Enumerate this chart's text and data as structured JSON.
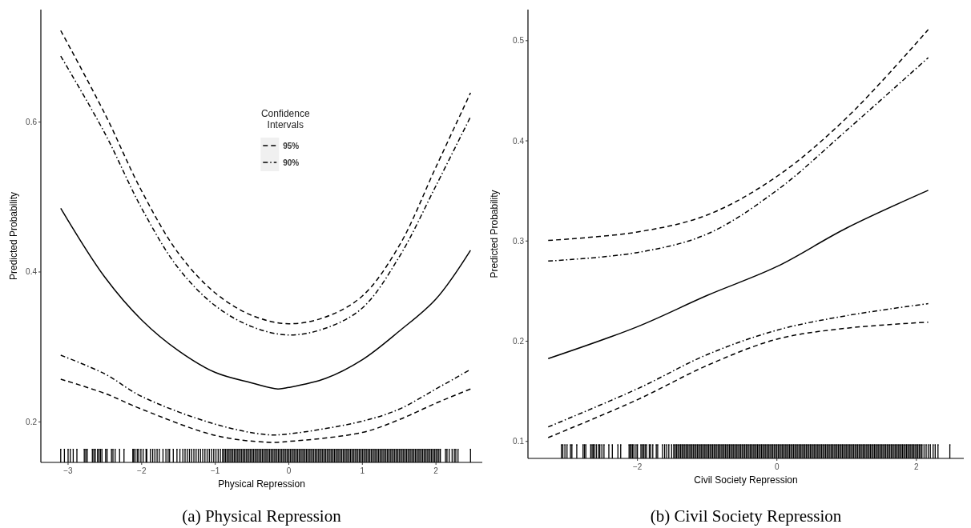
{
  "chart_data": [
    {
      "type": "line",
      "title": "(a) Physical Repression",
      "xlabel": "Physical Repression",
      "ylabel": "Predicted Probability",
      "legend_title": "Confidence\nIntervals",
      "legend": "top",
      "xlim": [
        -3.37,
        2.63
      ],
      "xticks": [
        {
          "value": -3,
          "label": "−3"
        },
        {
          "value": -2,
          "label": "−2"
        },
        {
          "value": -1,
          "label": "−1"
        },
        0,
        1,
        2
      ],
      "ylim": [
        0.146,
        0.75
      ],
      "yticks": [
        0.2,
        0.4,
        0.6
      ],
      "series": [
        {
          "color": "#000000",
          "line_style": "solid",
          "x": [
            -3.1,
            -2.5,
            -2,
            -1.5,
            -1,
            -0.5,
            -0.15,
            0,
            0.5,
            1,
            1.5,
            2,
            2.47
          ],
          "values": [
            0.485,
            0.393,
            0.336,
            0.295,
            0.266,
            0.252,
            0.244,
            0.246,
            0.258,
            0.283,
            0.321,
            0.364,
            0.429
          ]
        },
        {
          "name": "95%",
          "color": "#000000",
          "line_style": "dashed",
          "x": [
            -3.1,
            -2.5,
            -2,
            -1.5,
            -1,
            -0.5,
            0,
            0.5,
            1,
            1.5,
            2,
            2.47
          ],
          "values": [
            0.722,
            0.611,
            0.508,
            0.425,
            0.372,
            0.342,
            0.331,
            0.34,
            0.368,
            0.435,
            0.54,
            0.639
          ]
        },
        {
          "name": "90%",
          "color": "#000000",
          "line_style": "dashdot",
          "x": [
            -3.1,
            -2.5,
            -2,
            -1.5,
            -1,
            -0.5,
            0,
            0.5,
            1,
            1.5,
            2,
            2.47
          ],
          "values": [
            0.688,
            0.585,
            0.485,
            0.405,
            0.355,
            0.327,
            0.316,
            0.325,
            0.352,
            0.42,
            0.515,
            0.607
          ]
        },
        {
          "color": "#000000",
          "line_style": "dashed",
          "x": [
            -3.1,
            -2.5,
            -2,
            -1,
            -0.3,
            0,
            1,
            1.5,
            2,
            2.47
          ],
          "values": [
            0.257,
            0.238,
            0.217,
            0.182,
            0.173,
            0.174,
            0.186,
            0.203,
            0.225,
            0.244
          ]
        },
        {
          "color": "#000000",
          "line_style": "dashdot",
          "x": [
            -3.1,
            -2.5,
            -2,
            -1,
            -0.3,
            0,
            1,
            1.5,
            2,
            2.47
          ],
          "values": [
            0.289,
            0.264,
            0.234,
            0.197,
            0.183,
            0.184,
            0.201,
            0.217,
            0.244,
            0.27
          ]
        },
        {
          "type": "lollipop",
          "marker": "square",
          "color": "#000000",
          "values": [
            0.164,
            0.164,
            0.164,
            0.164,
            0.164,
            0.164,
            0.164,
            0.164,
            0.164,
            0.164,
            0.164,
            0.164,
            0.164,
            0.164,
            0.164,
            0.164,
            0.164,
            0.164,
            0.164,
            0.164,
            0.164,
            0.164,
            0.164,
            0.164,
            0.164,
            0.164,
            0.164,
            0.164,
            0.164,
            0.164,
            0.164,
            0.164,
            0.164,
            0.164,
            0.164,
            0.164,
            0.164,
            0.164,
            0.164,
            0.164,
            0.164,
            0.164,
            0.164,
            0.164,
            0.164,
            0.164,
            0.164,
            0.164,
            0.164,
            0.164,
            0.164,
            0.164,
            0.164,
            0.164,
            0.164,
            0.164,
            0.164,
            0.164,
            0.164,
            0.164,
            0.164,
            0.164,
            0.164,
            0.164,
            0.164,
            0.164,
            0.164,
            0.164,
            0.164,
            0.164,
            0.164,
            0.164,
            0.164,
            0.164,
            0.164,
            0.164,
            0.164,
            0.164,
            0.164,
            0.164,
            0.164,
            0.164,
            0.164,
            0.164,
            0.164,
            0.164,
            0.164,
            0.164,
            0.164,
            0.164,
            0.164,
            0.164,
            0.164,
            0.164,
            0.164,
            0.164,
            0.164,
            0.164,
            0.164,
            0.164,
            0.164,
            0.164,
            0.164,
            0.164,
            0.164,
            0.164,
            0.164,
            0.164,
            0.164,
            0.164,
            0.164,
            0.164,
            0.164,
            0.164,
            0.164,
            0.164,
            0.164,
            0.164,
            0.164,
            0.164,
            0.164,
            0.164,
            0.164,
            0.164,
            0.164,
            0.164,
            0.164,
            0.164,
            0.164,
            0.164,
            0.164,
            0.164,
            0.164,
            0.164,
            0.164,
            0.164,
            0.164,
            0.164,
            0.164,
            0.164,
            0.164,
            0.164,
            0.164,
            0.164,
            0.164,
            0.164,
            0.164,
            0.164,
            0.164,
            0.164,
            0.164,
            0.164,
            0.164,
            0.164,
            0.164,
            0.164,
            0.164,
            0.164,
            0.164,
            0.164,
            0.164,
            0.164,
            0.164,
            0.164,
            0.164,
            0.164,
            0.164,
            0.164,
            0.164,
            0.164,
            0.164,
            0.164,
            0.164,
            0.164,
            0.164,
            0.164,
            0.164,
            0.164,
            0.164,
            0.164,
            0.164,
            0.164,
            0.164,
            0.164,
            0.164,
            0.164,
            0.164,
            0.164,
            0.164,
            0.164,
            0.164,
            0.164,
            0.164,
            0.164,
            0.164,
            0.164,
            0.164,
            0.164,
            0.164,
            0.164,
            0.164,
            0.164,
            0.164,
            0.164,
            0.164,
            0.164,
            0.164,
            0.164,
            0.164,
            0.164,
            0.164,
            0.164,
            0.164,
            0.164,
            0.164,
            0.164,
            0.164,
            0.164,
            0.164
          ],
          "x": [
            -3.1,
            -3.05,
            -3.0,
            -2.97,
            -2.93,
            -2.88,
            -2.78,
            -2.76,
            -2.74,
            -2.67,
            -2.65,
            -2.63,
            -2.6,
            -2.58,
            -2.56,
            -2.54,
            -2.49,
            -2.47,
            -2.41,
            -2.39,
            -2.36,
            -2.3,
            -2.24,
            -2.12,
            -2.11,
            -2.09,
            -2.06,
            -2.04,
            -2.01,
            -1.98,
            -1.94,
            -1.93,
            -1.88,
            -1.85,
            -1.82,
            -1.79,
            -1.76,
            -1.71,
            -1.67,
            -1.64,
            -1.62,
            -1.57,
            -1.52,
            -1.48,
            -1.44,
            -1.41,
            -1.38,
            -1.35,
            -1.32,
            -1.29,
            -1.26,
            -1.23,
            -1.2,
            -1.17,
            -1.14,
            -1.11,
            -1.08,
            -1.05,
            -1.02,
            -0.99,
            -0.96,
            -0.93,
            -0.9,
            -0.88,
            -0.86,
            -0.84,
            -0.82,
            -0.8,
            -0.78,
            -0.76,
            -0.74,
            -0.72,
            -0.7,
            -0.68,
            -0.66,
            -0.64,
            -0.62,
            -0.6,
            -0.58,
            -0.56,
            -0.54,
            -0.52,
            -0.5,
            -0.48,
            -0.46,
            -0.44,
            -0.42,
            -0.4,
            -0.38,
            -0.36,
            -0.34,
            -0.32,
            -0.3,
            -0.28,
            -0.26,
            -0.24,
            -0.22,
            -0.2,
            -0.18,
            -0.16,
            -0.14,
            -0.12,
            -0.1,
            -0.08,
            -0.06,
            -0.04,
            -0.02,
            0,
            0.02,
            0.04,
            0.06,
            0.08,
            0.1,
            0.12,
            0.14,
            0.16,
            0.18,
            0.2,
            0.22,
            0.24,
            0.26,
            0.28,
            0.3,
            0.32,
            0.34,
            0.36,
            0.38,
            0.4,
            0.42,
            0.44,
            0.46,
            0.48,
            0.5,
            0.52,
            0.54,
            0.56,
            0.58,
            0.6,
            0.62,
            0.64,
            0.66,
            0.68,
            0.7,
            0.72,
            0.74,
            0.76,
            0.78,
            0.8,
            0.82,
            0.84,
            0.86,
            0.88,
            0.9,
            0.92,
            0.94,
            0.96,
            0.98,
            1,
            1.02,
            1.04,
            1.06,
            1.08,
            1.1,
            1.12,
            1.14,
            1.16,
            1.18,
            1.2,
            1.22,
            1.24,
            1.26,
            1.28,
            1.3,
            1.32,
            1.34,
            1.36,
            1.38,
            1.4,
            1.42,
            1.44,
            1.46,
            1.48,
            1.5,
            1.52,
            1.54,
            1.56,
            1.58,
            1.6,
            1.62,
            1.64,
            1.66,
            1.68,
            1.7,
            1.72,
            1.74,
            1.76,
            1.78,
            1.8,
            1.82,
            1.84,
            1.86,
            1.88,
            1.9,
            1.92,
            1.94,
            1.96,
            1.98,
            2,
            2.02,
            2.04,
            2.06,
            2.13,
            2.15,
            2.18,
            2.22,
            2.25,
            2.27,
            2.3,
            2.47
          ]
        }
      ]
    },
    {
      "type": "line",
      "title": "(b) Civil Society Repression",
      "xlabel": "Civil Society Repression",
      "ylabel": "Predicted Probability",
      "xlim": [
        -3.57,
        2.68
      ],
      "xticks": [
        {
          "value": -2,
          "label": "−2"
        },
        0,
        2
      ],
      "ylim": [
        0.083,
        0.531
      ],
      "yticks": [
        0.1,
        0.2,
        0.3,
        0.4,
        0.5
      ],
      "series": [
        {
          "color": "#000000",
          "line_style": "solid",
          "x": [
            -3.28,
            -2,
            -1,
            0,
            1,
            2.17
          ],
          "values": [
            0.1826,
            0.2145,
            0.2457,
            0.2745,
            0.313,
            0.3506
          ]
        },
        {
          "color": "#000000",
          "line_style": "dashed",
          "x": [
            -3.28,
            -2,
            -1,
            0,
            1,
            2.17
          ],
          "values": [
            0.3006,
            0.309,
            0.326,
            0.3645,
            0.423,
            0.511
          ]
        },
        {
          "color": "#000000",
          "line_style": "dashdot",
          "x": [
            -3.28,
            -2,
            -1,
            0,
            1,
            2.17
          ],
          "values": [
            0.28,
            0.2885,
            0.307,
            0.3506,
            0.4105,
            0.483
          ]
        },
        {
          "color": "#000000",
          "line_style": "dashed",
          "x": [
            -3.28,
            -2,
            -1,
            0,
            1,
            2.17
          ],
          "values": [
            0.1038,
            0.1416,
            0.1758,
            0.202,
            0.213,
            0.219
          ]
        },
        {
          "color": "#000000",
          "line_style": "dashdot",
          "x": [
            -3.28,
            -2,
            -1,
            0,
            1,
            2.17
          ],
          "values": [
            0.1144,
            0.1525,
            0.1866,
            0.211,
            0.2255,
            0.2375
          ]
        },
        {
          "type": "lollipop",
          "marker": "square",
          "color": "#000000",
          "values": [
            0.097,
            0.097,
            0.097,
            0.097,
            0.097,
            0.097,
            0.097,
            0.097,
            0.097,
            0.097,
            0.097,
            0.097,
            0.097,
            0.097,
            0.097,
            0.097,
            0.097,
            0.097,
            0.097,
            0.097,
            0.097,
            0.097,
            0.097,
            0.097,
            0.097,
            0.097,
            0.097,
            0.097,
            0.097,
            0.097,
            0.097,
            0.097,
            0.097,
            0.097,
            0.097,
            0.097,
            0.097,
            0.097,
            0.097,
            0.097,
            0.097,
            0.097,
            0.097,
            0.097,
            0.097,
            0.097,
            0.097,
            0.097,
            0.097,
            0.097,
            0.097,
            0.097,
            0.097,
            0.097,
            0.097,
            0.097,
            0.097,
            0.097,
            0.097,
            0.097,
            0.097,
            0.097,
            0.097,
            0.097,
            0.097,
            0.097,
            0.097,
            0.097,
            0.097,
            0.097,
            0.097,
            0.097,
            0.097,
            0.097,
            0.097,
            0.097,
            0.097,
            0.097,
            0.097,
            0.097,
            0.097,
            0.097,
            0.097,
            0.097,
            0.097,
            0.097,
            0.097,
            0.097,
            0.097,
            0.097,
            0.097,
            0.097,
            0.097,
            0.097,
            0.097,
            0.097,
            0.097,
            0.097,
            0.097,
            0.097,
            0.097,
            0.097,
            0.097,
            0.097,
            0.097,
            0.097,
            0.097,
            0.097,
            0.097,
            0.097,
            0.097,
            0.097,
            0.097,
            0.097,
            0.097,
            0.097,
            0.097,
            0.097,
            0.097,
            0.097,
            0.097,
            0.097,
            0.097,
            0.097,
            0.097,
            0.097,
            0.097,
            0.097,
            0.097,
            0.097,
            0.097,
            0.097,
            0.097,
            0.097,
            0.097,
            0.097,
            0.097,
            0.097,
            0.097,
            0.097,
            0.097,
            0.097,
            0.097,
            0.097,
            0.097,
            0.097,
            0.097,
            0.097,
            0.097,
            0.097,
            0.097,
            0.097,
            0.097,
            0.097,
            0.097,
            0.097,
            0.097,
            0.097,
            0.097,
            0.097,
            0.097,
            0.097,
            0.097,
            0.097,
            0.097,
            0.097,
            0.097,
            0.097,
            0.097,
            0.097,
            0.097,
            0.097,
            0.097,
            0.097,
            0.097,
            0.097,
            0.097,
            0.097,
            0.097,
            0.097,
            0.097,
            0.097,
            0.097,
            0.097,
            0.097,
            0.097,
            0.097,
            0.097,
            0.097,
            0.097,
            0.097,
            0.097,
            0.097,
            0.097,
            0.097,
            0.097,
            0.097,
            0.097,
            0.097,
            0.097,
            0.097,
            0.097,
            0.097,
            0.097,
            0.097,
            0.097,
            0.097,
            0.097,
            0.097,
            0.097,
            0.097,
            0.097,
            0.097,
            0.097,
            0.097,
            0.097,
            0.097,
            0.097,
            0.097,
            0.097,
            0.097,
            0.097,
            0.097,
            0.097,
            0.097,
            0.097,
            0.097,
            0.097,
            0.097,
            0.097,
            0.097,
            0.097
          ],
          "x": [
            -3.09,
            -3.07,
            -3.04,
            -3.01,
            -2.96,
            -2.94,
            -2.87,
            -2.78,
            -2.76,
            -2.74,
            -2.67,
            -2.65,
            -2.63,
            -2.62,
            -2.59,
            -2.56,
            -2.54,
            -2.51,
            -2.48,
            -2.41,
            -2.36,
            -2.28,
            -2.24,
            -2.12,
            -2.1,
            -2.09,
            -2.07,
            -2.05,
            -2.02,
            -2.0,
            -1.95,
            -1.93,
            -1.91,
            -1.89,
            -1.87,
            -1.83,
            -1.81,
            -1.78,
            -1.73,
            -1.71,
            -1.64,
            -1.61,
            -1.58,
            -1.55,
            -1.51,
            -1.48,
            -1.46,
            -1.44,
            -1.42,
            -1.4,
            -1.38,
            -1.36,
            -1.34,
            -1.32,
            -1.3,
            -1.28,
            -1.26,
            -1.24,
            -1.22,
            -1.2,
            -1.18,
            -1.16,
            -1.14,
            -1.12,
            -1.1,
            -1.08,
            -1.06,
            -1.04,
            -1.02,
            -1,
            -0.98,
            -0.96,
            -0.94,
            -0.92,
            -0.9,
            -0.88,
            -0.86,
            -0.84,
            -0.82,
            -0.8,
            -0.78,
            -0.76,
            -0.74,
            -0.72,
            -0.7,
            -0.68,
            -0.66,
            -0.64,
            -0.62,
            -0.6,
            -0.58,
            -0.56,
            -0.54,
            -0.52,
            -0.5,
            -0.48,
            -0.46,
            -0.44,
            -0.42,
            -0.4,
            -0.38,
            -0.36,
            -0.34,
            -0.32,
            -0.3,
            -0.28,
            -0.26,
            -0.24,
            -0.22,
            -0.2,
            -0.18,
            -0.16,
            -0.14,
            -0.12,
            -0.1,
            -0.08,
            -0.06,
            -0.04,
            -0.02,
            0,
            0.02,
            0.04,
            0.06,
            0.08,
            0.1,
            0.12,
            0.14,
            0.16,
            0.18,
            0.2,
            0.22,
            0.24,
            0.26,
            0.28,
            0.3,
            0.32,
            0.34,
            0.36,
            0.38,
            0.4,
            0.42,
            0.44,
            0.46,
            0.48,
            0.5,
            0.52,
            0.54,
            0.56,
            0.58,
            0.6,
            0.62,
            0.64,
            0.66,
            0.68,
            0.7,
            0.72,
            0.74,
            0.76,
            0.78,
            0.8,
            0.82,
            0.84,
            0.86,
            0.88,
            0.9,
            0.92,
            0.94,
            0.96,
            0.98,
            1,
            1.02,
            1.04,
            1.06,
            1.08,
            1.1,
            1.12,
            1.14,
            1.16,
            1.18,
            1.2,
            1.22,
            1.24,
            1.26,
            1.28,
            1.3,
            1.32,
            1.34,
            1.36,
            1.38,
            1.4,
            1.42,
            1.44,
            1.46,
            1.48,
            1.5,
            1.52,
            1.54,
            1.56,
            1.58,
            1.6,
            1.62,
            1.64,
            1.66,
            1.68,
            1.7,
            1.72,
            1.74,
            1.76,
            1.78,
            1.8,
            1.82,
            1.84,
            1.86,
            1.88,
            1.9,
            1.92,
            1.94,
            1.96,
            1.98,
            2,
            2.02,
            2.04,
            2.06,
            2.08,
            2.11,
            2.14,
            2.17,
            2.2,
            2.24,
            2.27,
            2.31,
            2.48
          ]
        }
      ]
    }
  ]
}
